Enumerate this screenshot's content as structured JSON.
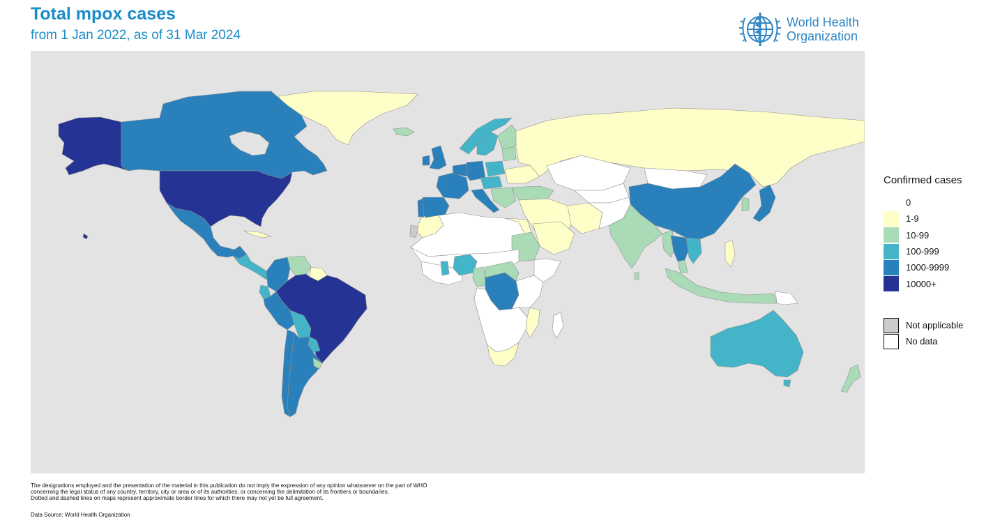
{
  "header": {
    "title": "Total mpox cases",
    "subtitle": "from 1 Jan 2022, as of 31 Mar 2024"
  },
  "logo": {
    "icon": "who-emblem-icon",
    "line1": "World Health",
    "line2": "Organization",
    "color": "#2f86c5"
  },
  "map": {
    "background_color": "#e3e3e3",
    "colors": {
      "0": "#ffffff",
      "1-9": "#fefec8",
      "10-99": "#a8dbb6",
      "100-999": "#44b4c8",
      "1000-9999": "#2a80bb",
      "10000+": "#253494",
      "not_applicable": "#cccccc"
    }
  },
  "legend": {
    "title": "Confirmed cases",
    "items": [
      {
        "label": "0",
        "color": "#ffffff"
      },
      {
        "label": "1-9",
        "color": "#fefec8"
      },
      {
        "label": "10-99",
        "color": "#a8dbb6"
      },
      {
        "label": "100-999",
        "color": "#44b4c8"
      },
      {
        "label": "1000-9999",
        "color": "#2a80bb"
      },
      {
        "label": "10000+",
        "color": "#253494"
      }
    ],
    "extra": [
      {
        "label": "Not applicable",
        "color": "#cccccc"
      },
      {
        "label": "No data",
        "color": "#ffffff"
      }
    ]
  },
  "footer": {
    "disclaimer_line1": "The designations employed and the presentation of the material in this publication do not imply the expression of any opinion whatsoever on the part of WHO",
    "disclaimer_line2": "concerning the legal status of any country, territory, city or area or of its authorities, or concerning the delimitation of its frontiers or boundaries.",
    "disclaimer_line3": "Dotted and dashed lines on maps represent approximate border lines for which there may not yet be full agreement.",
    "source": "Data Source: World Health Organization"
  }
}
